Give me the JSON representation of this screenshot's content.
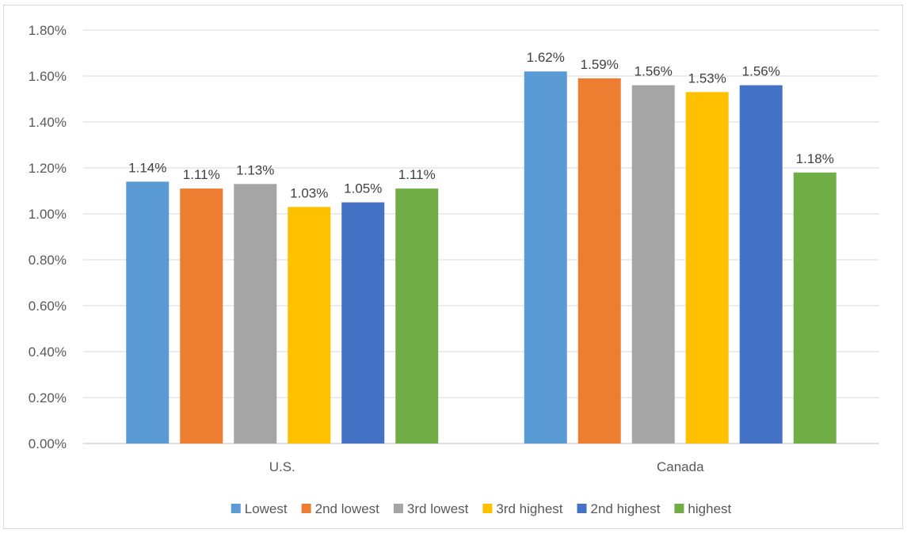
{
  "chart_data": {
    "type": "bar",
    "categories": [
      "U.S.",
      "Canada"
    ],
    "series": [
      {
        "name": "Lowest",
        "color": "#5b9bd5",
        "values": [
          1.14,
          1.62
        ],
        "labels": [
          "1.14%",
          "1.62%"
        ]
      },
      {
        "name": "2nd lowest",
        "color": "#ed7d31",
        "values": [
          1.11,
          1.59
        ],
        "labels": [
          "1.11%",
          "1.59%"
        ]
      },
      {
        "name": "3rd lowest",
        "color": "#a5a5a5",
        "values": [
          1.13,
          1.56
        ],
        "labels": [
          "1.13%",
          "1.56%"
        ]
      },
      {
        "name": "3rd highest",
        "color": "#ffc000",
        "values": [
          1.03,
          1.53
        ],
        "labels": [
          "1.03%",
          "1.53%"
        ]
      },
      {
        "name": "2nd highest",
        "color": "#4472c4",
        "values": [
          1.05,
          1.56
        ],
        "labels": [
          "1.05%",
          "1.56%"
        ]
      },
      {
        "name": "highest",
        "color": "#70ad47",
        "values": [
          1.11,
          1.18
        ],
        "labels": [
          "1.11%",
          "1.18%"
        ]
      }
    ],
    "ylim": [
      0,
      1.8
    ],
    "yticks": [
      "0.00%",
      "0.20%",
      "0.40%",
      "0.60%",
      "0.80%",
      "1.00%",
      "1.20%",
      "1.40%",
      "1.60%",
      "1.80%"
    ],
    "grid": true,
    "legend_position": "bottom",
    "title": "",
    "xlabel": "",
    "ylabel": ""
  }
}
